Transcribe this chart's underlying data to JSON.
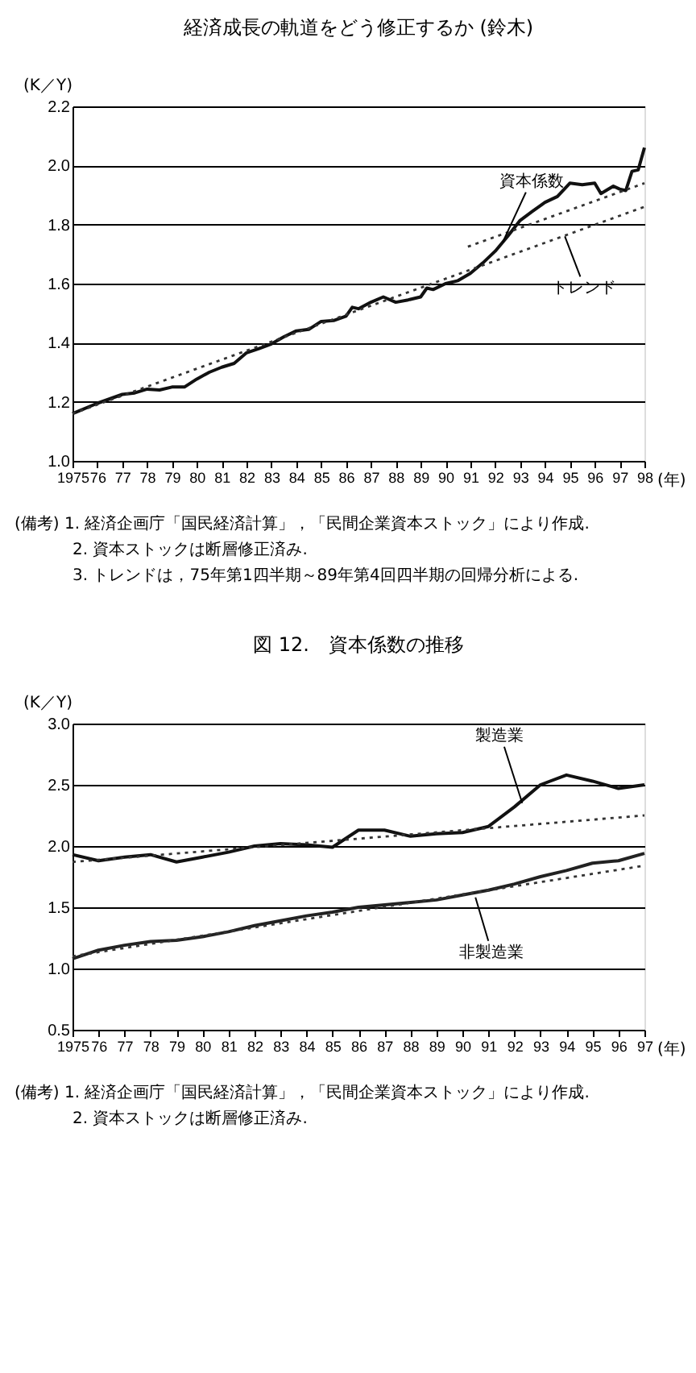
{
  "chart_data": [
    {
      "type": "line",
      "title": "経済成長の軌道をどう修正するか (鈴木)",
      "ylabel": "(K／Y)",
      "xlabel": "(年)",
      "xlim": [
        1975,
        1998
      ],
      "xticks": [
        1975,
        {
          "value": 1976,
          "label": "76"
        },
        {
          "value": 1977,
          "label": "77"
        },
        {
          "value": 1978,
          "label": "78"
        },
        {
          "value": 1979,
          "label": "79"
        },
        {
          "value": 1980,
          "label": "80"
        },
        {
          "value": 1981,
          "label": "81"
        },
        {
          "value": 1982,
          "label": "82"
        },
        {
          "value": 1983,
          "label": "83"
        },
        {
          "value": 1984,
          "label": "84"
        },
        {
          "value": 1985,
          "label": "85"
        },
        {
          "value": 1986,
          "label": "86"
        },
        {
          "value": 1987,
          "label": "87"
        },
        {
          "value": 1988,
          "label": "88"
        },
        {
          "value": 1989,
          "label": "89"
        },
        {
          "value": 1990,
          "label": "90"
        },
        {
          "value": 1991,
          "label": "91"
        },
        {
          "value": 1992,
          "label": "92"
        },
        {
          "value": 1993,
          "label": "93"
        },
        {
          "value": 1994,
          "label": "94"
        },
        {
          "value": 1995,
          "label": "95"
        },
        {
          "value": 1996,
          "label": "96"
        },
        {
          "value": 1997,
          "label": "97"
        },
        {
          "value": 1998,
          "label": "98"
        }
      ],
      "ylim": [
        1.0,
        2.2
      ],
      "yticks": [
        {
          "value": 1.0,
          "label": "1.0"
        },
        1.2,
        1.4,
        1.6,
        1.8,
        {
          "value": 2.0,
          "label": "2.0"
        },
        2.2
      ],
      "grid": "y",
      "series": [
        {
          "color": "#111111",
          "line_style": "solid",
          "x": [
            1975,
            1976,
            1976.5,
            1977,
            1977.5,
            1978,
            1978.5,
            1979,
            1979.5,
            1980,
            1980.5,
            1981,
            1981.5,
            1982,
            1982.5,
            1983,
            1983.5,
            1984,
            1984.5,
            1985,
            1985.5,
            1986,
            1986.25,
            1986.5,
            1987,
            1987.5,
            1988,
            1988.5,
            1989,
            1989.25,
            1989.5,
            1990,
            1990.5,
            1991,
            1991.5,
            1992,
            1992.5,
            1993,
            1993.5,
            1994,
            1994.5,
            1995,
            1995.5,
            1996,
            1996.25,
            1996.75,
            1997,
            1997.25,
            1997.5,
            1997.75,
            1998
          ],
          "values": [
            1.16,
            1.195,
            1.21,
            1.225,
            1.23,
            1.243,
            1.24,
            1.25,
            1.25,
            1.277,
            1.3,
            1.317,
            1.33,
            1.366,
            1.38,
            1.396,
            1.42,
            1.44,
            1.445,
            1.472,
            1.475,
            1.49,
            1.52,
            1.515,
            1.537,
            1.555,
            1.537,
            1.545,
            1.555,
            1.585,
            1.58,
            1.6,
            1.61,
            1.635,
            1.67,
            1.71,
            1.76,
            1.814,
            1.845,
            1.875,
            1.895,
            1.94,
            1.935,
            1.94,
            1.905,
            1.93,
            1.92,
            1.915,
            1.98,
            1.985,
            2.06
          ]
        },
        {
          "color": "#333333",
          "line_style": "dotted",
          "x": [
            1975,
            1998
          ],
          "values": [
            1.16,
            1.86
          ]
        },
        {
          "color": "#333333",
          "line_style": "dotted",
          "x": [
            1990.9,
            1998
          ],
          "values": [
            1.725,
            1.94
          ]
        }
      ],
      "annotations": [
        {
          "text": "資本係数",
          "x": 1992.3,
          "y": 1.74
        },
        {
          "text": "トレンド",
          "x": 1994.8,
          "y": 1.76
        },
        "(備考) 1. 経済企画庁「国民経済計算」，「民間企業資本ストック」により作成.",
        "2. 資本ストックは断層修正済み.",
        "3. トレンドは，75年第1四半期～89年第4回四半期の回帰分析による."
      ]
    },
    {
      "type": "line",
      "title": "図 12.　資本係数の推移",
      "ylabel": "(K／Y)",
      "xlabel": "(年)",
      "xlim": [
        1975,
        1997
      ],
      "xticks": [
        1975,
        {
          "value": 1976,
          "label": "76"
        },
        {
          "value": 1977,
          "label": "77"
        },
        {
          "value": 1978,
          "label": "78"
        },
        {
          "value": 1979,
          "label": "79"
        },
        {
          "value": 1980,
          "label": "80"
        },
        {
          "value": 1981,
          "label": "81"
        },
        {
          "value": 1982,
          "label": "82"
        },
        {
          "value": 1983,
          "label": "83"
        },
        {
          "value": 1984,
          "label": "84"
        },
        {
          "value": 1985,
          "label": "85"
        },
        {
          "value": 1986,
          "label": "86"
        },
        {
          "value": 1987,
          "label": "87"
        },
        {
          "value": 1988,
          "label": "88"
        },
        {
          "value": 1989,
          "label": "89"
        },
        {
          "value": 1990,
          "label": "90"
        },
        {
          "value": 1991,
          "label": "91"
        },
        {
          "value": 1992,
          "label": "92"
        },
        {
          "value": 1993,
          "label": "93"
        },
        {
          "value": 1994,
          "label": "94"
        },
        {
          "value": 1995,
          "label": "95"
        },
        {
          "value": 1996,
          "label": "96"
        },
        {
          "value": 1997,
          "label": "97"
        }
      ],
      "ylim": [
        0.5,
        3.0
      ],
      "yticks": [
        0.5,
        {
          "value": 1.0,
          "label": "1.0"
        },
        1.5,
        {
          "value": 2.0,
          "label": "2.0"
        },
        2.5,
        {
          "value": 3.0,
          "label": "3.0"
        }
      ],
      "grid": "y",
      "series": [
        {
          "color": "#111111",
          "line_style": "solid",
          "x": [
            1975,
            1976,
            1977,
            1978,
            1979,
            1980,
            1981,
            1982,
            1983,
            1984,
            1985,
            1986,
            1987,
            1988,
            1989,
            1990,
            1991,
            1992,
            1993,
            1994,
            1995,
            1996,
            1997
          ],
          "values": [
            1.93,
            1.88,
            1.91,
            1.93,
            1.87,
            1.91,
            1.95,
            2.0,
            2.02,
            2.01,
            1.99,
            2.13,
            2.13,
            2.08,
            2.1,
            2.11,
            2.16,
            2.32,
            2.5,
            2.58,
            2.53,
            2.47,
            2.5
          ]
        },
        {
          "color": "#333333",
          "line_style": "dotted",
          "x": [
            1975,
            1997
          ],
          "values": [
            1.87,
            2.25
          ]
        },
        {
          "color": "#222222",
          "line_style": "solid",
          "x": [
            1975,
            1976,
            1977,
            1978,
            1979,
            1980,
            1981,
            1982,
            1983,
            1984,
            1985,
            1986,
            1987,
            1988,
            1989,
            1990,
            1991,
            1992,
            1993,
            1994,
            1995,
            1996,
            1997
          ],
          "values": [
            1.08,
            1.15,
            1.19,
            1.22,
            1.23,
            1.26,
            1.3,
            1.35,
            1.39,
            1.43,
            1.46,
            1.5,
            1.52,
            1.54,
            1.56,
            1.6,
            1.64,
            1.69,
            1.75,
            1.8,
            1.86,
            1.88,
            1.94
          ]
        },
        {
          "color": "#333333",
          "line_style": "dotted",
          "x": [
            1975,
            1997
          ],
          "values": [
            1.1,
            1.84
          ]
        }
      ],
      "annotations": [
        {
          "text": "製造業",
          "x": 1992.3,
          "y": 2.35
        },
        {
          "text": "非製造業",
          "x": 1990.5,
          "y": 1.58
        },
        "(備考) 1. 経済企画庁「国民経済計算」，「民間企業資本ストック」により作成.",
        "2. 資本ストックは断層修正済み."
      ]
    }
  ]
}
